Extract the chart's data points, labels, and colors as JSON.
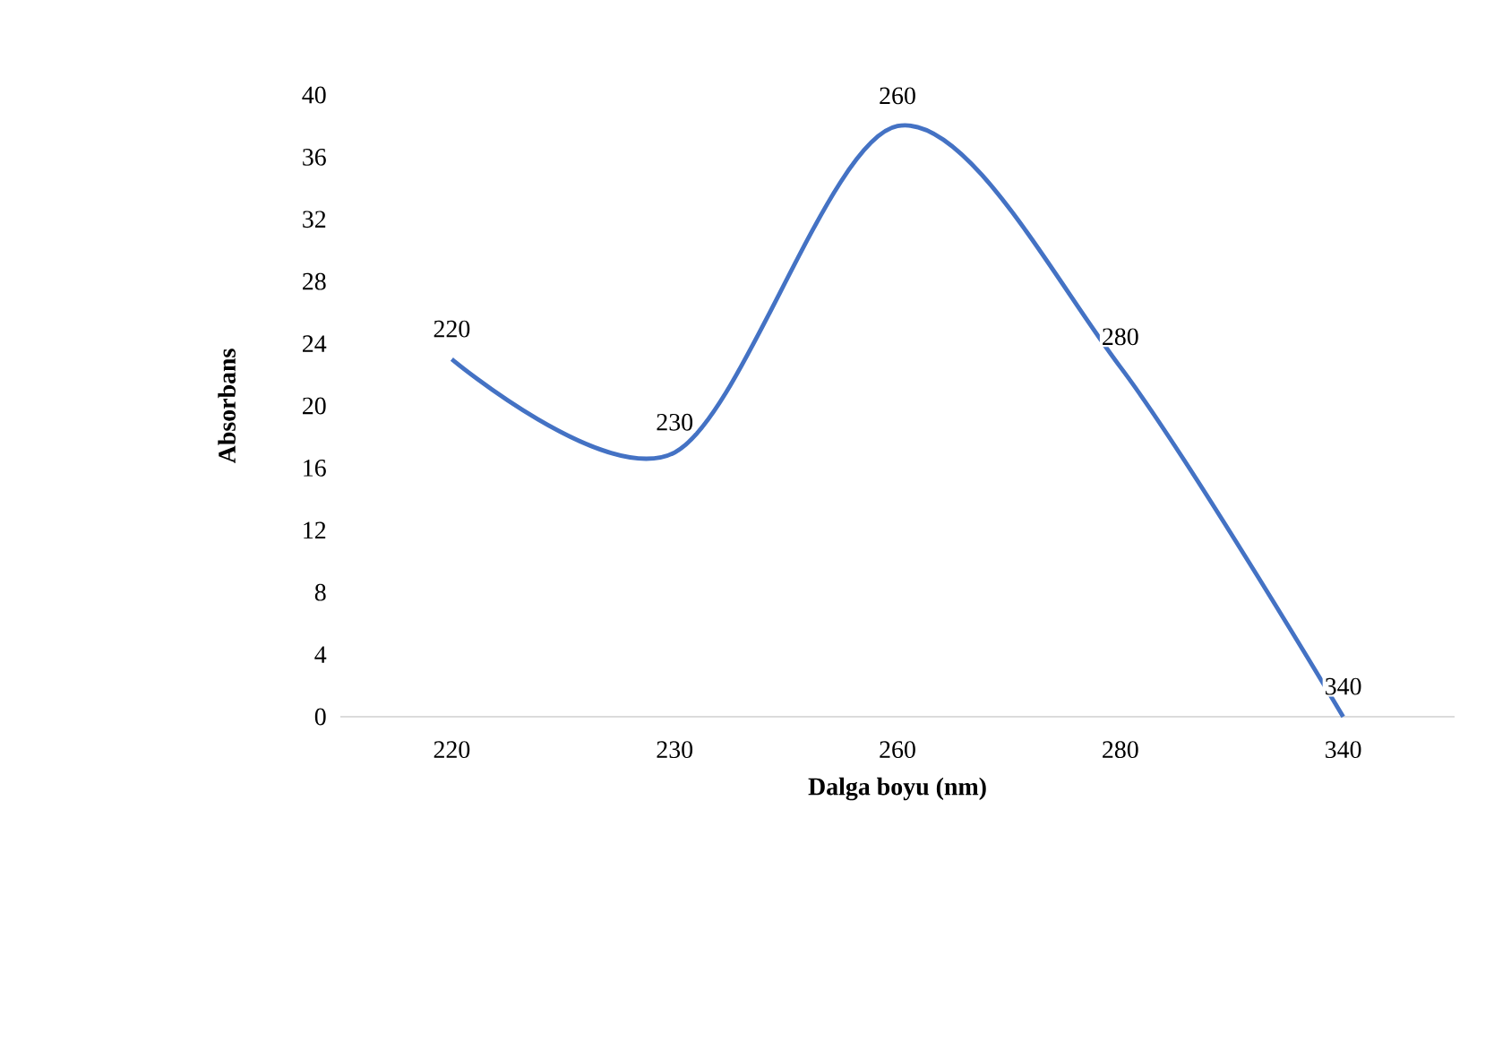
{
  "chart_data": {
    "type": "line",
    "xlabel": "Dalga boyu (nm)",
    "ylabel": "Absorbans",
    "categories": [
      "220",
      "230",
      "260",
      "280",
      "340"
    ],
    "series": [
      {
        "color": "#4472c4",
        "values": [
          23,
          17,
          38,
          22.5,
          0
        ]
      }
    ],
    "ylim": [
      0,
      40
    ],
    "yticks": [
      0,
      4,
      8,
      12,
      16,
      20,
      24,
      28,
      32,
      36,
      40
    ],
    "annotations": [
      {
        "text": "220",
        "x": "220",
        "y": 23
      },
      {
        "text": "230",
        "x": "230",
        "y": 17
      },
      {
        "text": "260",
        "x": "260",
        "y": 38
      },
      {
        "text": "280",
        "x": "280",
        "y": 22.5
      },
      {
        "text": "340",
        "x": "340",
        "y": 0
      }
    ]
  }
}
